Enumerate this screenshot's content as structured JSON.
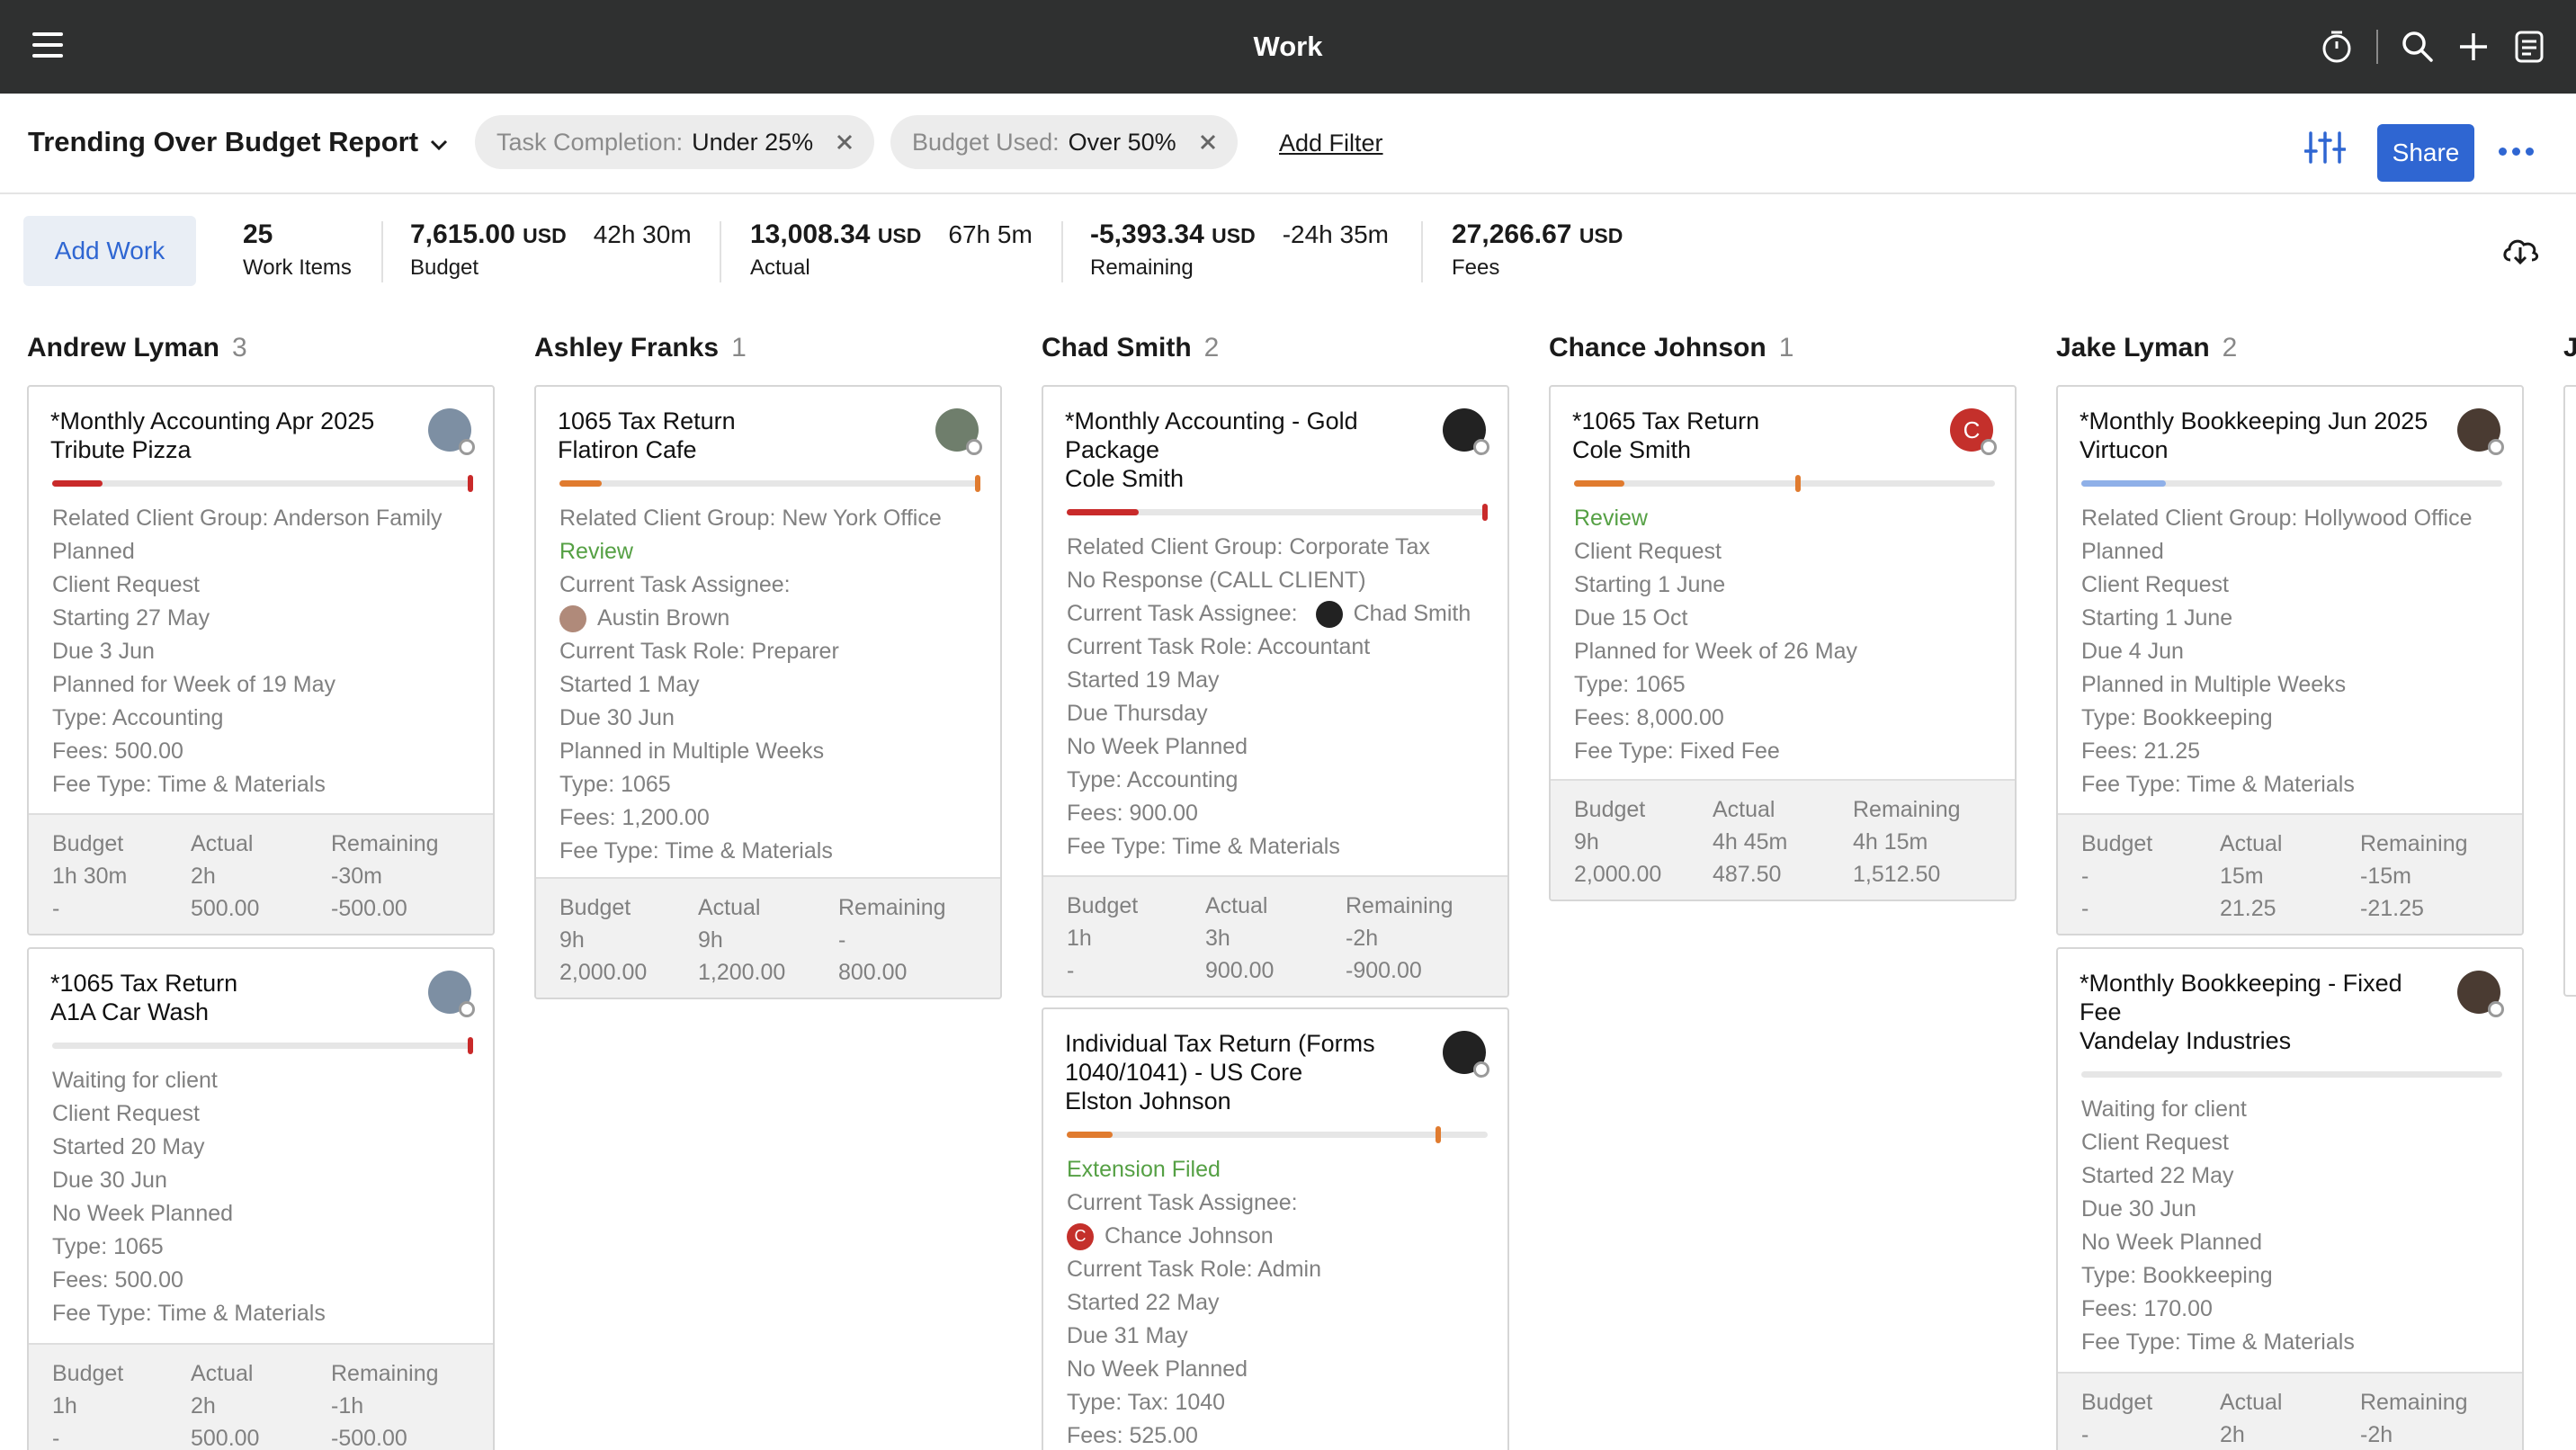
{
  "topbar": {
    "title": "Work"
  },
  "filterbar": {
    "report_title": "Trending Over Budget Report",
    "filters": [
      {
        "label": "Task Completion:",
        "value": "Under 25%"
      },
      {
        "label": "Budget Used:",
        "value": "Over 50%"
      }
    ],
    "add_filter": "Add Filter",
    "share": "Share"
  },
  "summary": {
    "add_work": "Add Work",
    "work_items": {
      "value": "25",
      "label": "Work Items"
    },
    "budget": {
      "amount": "7,615.00",
      "currency": "USD",
      "hours": "42h 30m",
      "label": "Budget"
    },
    "actual": {
      "amount": "13,008.34",
      "currency": "USD",
      "hours": "67h 5m",
      "label": "Actual"
    },
    "remaining": {
      "amount": "-5,393.34",
      "currency": "USD",
      "hours": "-24h 35m",
      "label": "Remaining"
    },
    "fees": {
      "amount": "27,266.67",
      "currency": "USD",
      "label": "Fees"
    }
  },
  "foot_labels": {
    "budget": "Budget",
    "actual": "Actual",
    "remaining": "Remaining"
  },
  "columns": [
    {
      "name": "Andrew Lyman",
      "count": "3"
    },
    {
      "name": "Ashley Franks",
      "count": "1"
    },
    {
      "name": "Chad Smith",
      "count": "2"
    },
    {
      "name": "Chance Johnson",
      "count": "1"
    },
    {
      "name": "Jake Lyman",
      "count": "2"
    },
    {
      "name": "J",
      "count": ""
    }
  ],
  "colors": {
    "accent": "#2f66d2",
    "topbar": "#2f3030",
    "status_green": "#55a044",
    "progress_red": "#c92a2a",
    "progress_orange": "#e07b2f",
    "progress_blue": "#8fb0e8"
  },
  "cards": [
    {
      "title1": "*Monthly Accounting Apr 2025",
      "title2": "Tribute Pizza",
      "title3": "",
      "progress": 0.12,
      "lines": [
        "Related Client Group: Anderson Family",
        "Planned",
        "Client Request",
        "Starting 27 May",
        "Due 3 Jun",
        "Planned for Week of 19 May",
        "Type: Accounting",
        "Fees: 500.00",
        "Fee Type: Time & Materials"
      ],
      "foot": {
        "budget_h": "1h 30m",
        "budget_v": "-",
        "actual_h": "2h",
        "actual_v": "500.00",
        "rem_h": "-30m",
        "rem_v": "-500.00"
      }
    },
    {
      "title1": "*1065 Tax Return",
      "title2": "A1A Car Wash",
      "title3": "",
      "progress": 0.0,
      "lines": [
        "Waiting for client",
        "Client Request",
        "Started 20 May",
        "Due 30 Jun",
        "No Week Planned",
        "Type: 1065",
        "Fees: 500.00",
        "Fee Type: Time & Materials"
      ],
      "foot": {
        "budget_h": "1h",
        "budget_v": "-",
        "actual_h": "2h",
        "actual_v": "500.00",
        "rem_h": "-1h",
        "rem_v": "-500.00"
      }
    },
    {
      "title1": "1065 Tax Return",
      "title2": "Flatiron Cafe",
      "title3": "",
      "progress": 0.1,
      "lines": [
        "Related Client Group: New York Office",
        "Review",
        "Current Task Assignee:",
        "Austin Brown",
        "Current Task Role: Preparer",
        "Started 1 May",
        "Due 30 Jun",
        "Planned in Multiple Weeks",
        "Type: 1065",
        "Fees: 1,200.00",
        "Fee Type: Time & Materials"
      ],
      "foot": {
        "budget_h": "9h",
        "budget_v": "2,000.00",
        "actual_h": "9h",
        "actual_v": "1,200.00",
        "rem_h": "-",
        "rem_v": "800.00"
      }
    },
    {
      "title1": "*Monthly Accounting - Gold",
      "title2": "Package",
      "title3": "Cole Smith",
      "progress": 0.17,
      "lines": [
        "Related Client Group: Corporate Tax",
        "No Response (CALL CLIENT)",
        "Current Task Assignee:",
        "Chad Smith",
        "Current Task Role: Accountant",
        "Started 19 May",
        "Due Thursday",
        "No Week Planned",
        "Type: Accounting",
        "Fees: 900.00",
        "Fee Type: Time & Materials"
      ],
      "foot": {
        "budget_h": "1h",
        "budget_v": "-",
        "actual_h": "3h",
        "actual_v": "900.00",
        "rem_h": "-2h",
        "rem_v": "-900.00"
      }
    },
    {
      "title1": "Individual Tax Return (Forms",
      "title2": "1040/1041) - US Core",
      "title3": "Elston Johnson",
      "progress": 0.11,
      "lines": [
        "Extension Filed",
        "Current Task Assignee:",
        "Chance Johnson",
        "Current Task Role: Admin",
        "Started 22 May",
        "Due 31 May",
        "No Week Planned",
        "Type: Tax: 1040",
        "Fees: 525.00"
      ]
    },
    {
      "title1": "*1065 Tax Return",
      "title2": "Cole Smith",
      "title3": "",
      "progress": 0.12,
      "lines": [
        "Review",
        "Client Request",
        "Starting 1 June",
        "Due 15 Oct",
        "Planned for Week of 26 May",
        "Type: 1065",
        "Fees: 8,000.00",
        "Fee Type: Fixed Fee"
      ],
      "foot": {
        "budget_h": "9h",
        "budget_v": "2,000.00",
        "actual_h": "4h 45m",
        "actual_v": "487.50",
        "rem_h": "4h 15m",
        "rem_v": "1,512.50"
      }
    },
    {
      "title1": "*Monthly Bookkeeping Jun 2025",
      "title2": "Virtucon",
      "title3": "",
      "progress": 0.2,
      "lines": [
        "Related Client Group: Hollywood Office",
        "Planned",
        "Client Request",
        "Starting 1 June",
        "Due 4 Jun",
        "Planned in Multiple Weeks",
        "Type: Bookkeeping",
        "Fees: 21.25",
        "Fee Type: Time & Materials"
      ],
      "foot": {
        "budget_h": "-",
        "budget_v": "-",
        "actual_h": "15m",
        "actual_v": "21.25",
        "rem_h": "-15m",
        "rem_v": "-21.25"
      }
    },
    {
      "title1": "*Monthly Bookkeeping - Fixed",
      "title2": "Fee",
      "title3": "Vandelay Industries",
      "progress": 0.0,
      "lines": [
        "Waiting for client",
        "Client Request",
        "Started 22 May",
        "Due 30 Jun",
        "No Week Planned",
        "Type: Bookkeeping",
        "Fees: 170.00",
        "Fee Type: Time & Materials"
      ],
      "foot": {
        "budget_h": "-",
        "budget_v": "",
        "actual_h": "2h",
        "actual_v": "",
        "rem_h": "-2h",
        "rem_v": ""
      }
    }
  ]
}
